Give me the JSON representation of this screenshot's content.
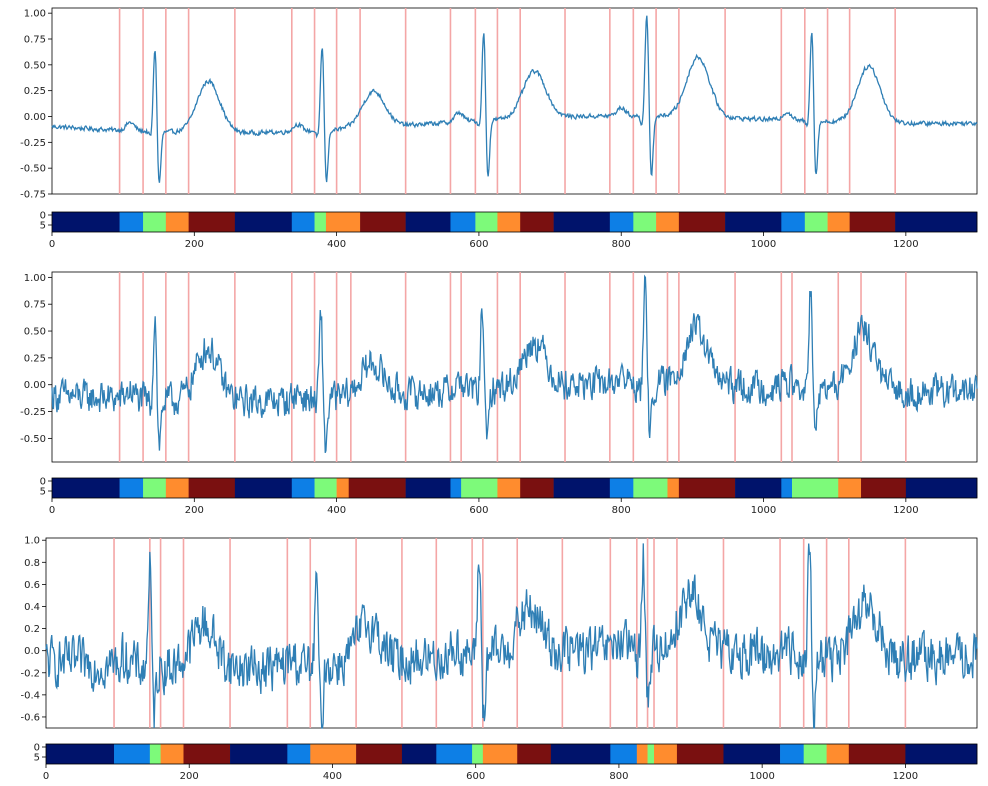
{
  "figure": {
    "description_none": ""
  },
  "colors": {
    "signal": "#2f7fb5",
    "boundary": "#f4a6a6",
    "seg_colormap": "jet",
    "seg_classes": {
      "0": "#00136b",
      "1": "#0d7fe6",
      "2": "#7dfa7a",
      "3": "#ff8c2e",
      "4": "#7a1010"
    }
  },
  "chart_data": [
    {
      "type": "line",
      "x_range": [
        0,
        1300
      ],
      "ylim": [
        -0.75,
        1.05
      ],
      "yticks": [
        -0.75,
        -0.5,
        -0.25,
        0.0,
        0.25,
        0.5,
        0.75,
        1.0
      ],
      "ytick_labels": [
        "-0.75",
        "-0.50",
        "-0.25",
        "0.00",
        "0.25",
        "0.50",
        "0.75",
        "1.00"
      ],
      "noise": 0.012,
      "beats": [
        {
          "p": 110,
          "q": 140,
          "r": 145,
          "s": 150,
          "t": 220,
          "p_amp": 0.08,
          "r_amp": 0.9,
          "s_amp": -0.6,
          "t_amp": 0.5
        },
        {
          "p": 345,
          "q": 375,
          "r": 380,
          "s": 385,
          "t": 452,
          "p_amp": 0.07,
          "r_amp": 0.9,
          "s_amp": -0.6,
          "t_amp": 0.35
        },
        {
          "p": 572,
          "q": 602,
          "r": 607,
          "s": 612,
          "t": 678,
          "p_amp": 0.09,
          "r_amp": 0.95,
          "s_amp": -0.65,
          "t_amp": 0.45
        },
        {
          "p": 800,
          "q": 830,
          "r": 836,
          "s": 842,
          "t": 908,
          "p_amp": 0.08,
          "r_amp": 1.0,
          "s_amp": -0.62,
          "t_amp": 0.58
        },
        {
          "p": 1033,
          "q": 1063,
          "r": 1068,
          "s": 1073,
          "t": 1148,
          "p_amp": 0.08,
          "r_amp": 0.98,
          "s_amp": -0.63,
          "t_amp": 0.55
        }
      ],
      "boundaries": [
        95,
        128,
        160,
        192,
        257,
        337,
        369,
        400,
        433,
        497,
        560,
        595,
        626,
        658,
        721,
        784,
        817,
        849,
        881,
        946,
        1025,
        1058,
        1090,
        1121,
        1185
      ],
      "segments": [
        [
          0,
          95,
          0
        ],
        [
          95,
          128,
          1
        ],
        [
          128,
          160,
          2
        ],
        [
          160,
          192,
          3
        ],
        [
          192,
          257,
          4
        ],
        [
          257,
          337,
          0
        ],
        [
          337,
          369,
          1
        ],
        [
          369,
          385,
          2
        ],
        [
          385,
          433,
          3
        ],
        [
          433,
          497,
          4
        ],
        [
          497,
          560,
          0
        ],
        [
          560,
          595,
          1
        ],
        [
          595,
          626,
          2
        ],
        [
          626,
          658,
          3
        ],
        [
          658,
          705,
          4
        ],
        [
          705,
          784,
          0
        ],
        [
          784,
          817,
          1
        ],
        [
          817,
          849,
          2
        ],
        [
          849,
          881,
          3
        ],
        [
          881,
          946,
          4
        ],
        [
          946,
          1025,
          0
        ],
        [
          1025,
          1058,
          1
        ],
        [
          1058,
          1090,
          2
        ],
        [
          1090,
          1121,
          3
        ],
        [
          1121,
          1185,
          4
        ],
        [
          1185,
          1300,
          0
        ]
      ],
      "seg_xticks": [
        0,
        200,
        400,
        600,
        800,
        1000,
        1200
      ],
      "seg_yticks": [
        "0",
        "5"
      ]
    },
    {
      "type": "line",
      "x_range": [
        0,
        1300
      ],
      "ylim": [
        -0.72,
        1.05
      ],
      "yticks": [
        -0.5,
        -0.25,
        0.0,
        0.25,
        0.5,
        0.75,
        1.0
      ],
      "ytick_labels": [
        "-0.50",
        "-0.25",
        "0.00",
        "0.25",
        "0.50",
        "0.75",
        "1.00"
      ],
      "noise": 0.085,
      "beats": [
        {
          "p": 110,
          "q": 140,
          "r": 145,
          "s": 150,
          "t": 218,
          "p_amp": 0.08,
          "r_amp": 0.88,
          "s_amp": -0.52,
          "t_amp": 0.5
        },
        {
          "p": 345,
          "q": 373,
          "r": 378,
          "s": 384,
          "t": 450,
          "p_amp": 0.07,
          "r_amp": 0.8,
          "s_amp": -0.5,
          "t_amp": 0.3
        },
        {
          "p": 572,
          "q": 600,
          "r": 605,
          "s": 611,
          "t": 678,
          "p_amp": 0.08,
          "r_amp": 0.82,
          "s_amp": -0.62,
          "t_amp": 0.42
        },
        {
          "p": 800,
          "q": 828,
          "r": 834,
          "s": 840,
          "t": 905,
          "p_amp": 0.08,
          "r_amp": 0.95,
          "s_amp": -0.52,
          "t_amp": 0.52
        },
        {
          "p": 1033,
          "q": 1061,
          "r": 1066,
          "s": 1072,
          "t": 1140,
          "p_amp": 0.08,
          "r_amp": 0.98,
          "s_amp": -0.52,
          "t_amp": 0.55
        }
      ],
      "boundaries": [
        95,
        128,
        160,
        192,
        257,
        337,
        369,
        400,
        420,
        497,
        560,
        575,
        626,
        658,
        721,
        784,
        817,
        865,
        881,
        960,
        1025,
        1040,
        1105,
        1137,
        1200
      ],
      "segments": [
        [
          0,
          95,
          0
        ],
        [
          95,
          128,
          1
        ],
        [
          128,
          160,
          2
        ],
        [
          160,
          192,
          3
        ],
        [
          192,
          257,
          4
        ],
        [
          257,
          337,
          0
        ],
        [
          337,
          369,
          1
        ],
        [
          369,
          400,
          2
        ],
        [
          400,
          417,
          3
        ],
        [
          417,
          497,
          4
        ],
        [
          497,
          560,
          0
        ],
        [
          560,
          575,
          1
        ],
        [
          575,
          626,
          2
        ],
        [
          626,
          658,
          3
        ],
        [
          658,
          705,
          4
        ],
        [
          705,
          784,
          0
        ],
        [
          784,
          817,
          1
        ],
        [
          817,
          865,
          2
        ],
        [
          865,
          881,
          3
        ],
        [
          881,
          960,
          4
        ],
        [
          960,
          1025,
          0
        ],
        [
          1025,
          1040,
          1
        ],
        [
          1040,
          1105,
          2
        ],
        [
          1105,
          1137,
          3
        ],
        [
          1137,
          1200,
          4
        ],
        [
          1200,
          1300,
          0
        ]
      ],
      "seg_xticks": [
        0,
        200,
        400,
        600,
        800,
        1000,
        1200
      ],
      "seg_yticks": [
        "0",
        "5"
      ]
    },
    {
      "type": "line",
      "x_range": [
        0,
        1300
      ],
      "ylim": [
        -0.7,
        1.02
      ],
      "yticks": [
        -0.6,
        -0.4,
        -0.2,
        0.0,
        0.2,
        0.4,
        0.6,
        0.8,
        1.0
      ],
      "ytick_labels": [
        "-0.6",
        "-0.4",
        "-0.2",
        "0.0",
        "0.2",
        "0.4",
        "0.6",
        "0.8",
        "1.0"
      ],
      "noise": 0.12,
      "beats": [
        {
          "p": 110,
          "q": 140,
          "r": 145,
          "s": 150,
          "t": 220,
          "p_amp": 0.08,
          "r_amp": 1.0,
          "s_amp": -0.55,
          "t_amp": 0.4
        },
        {
          "p": 345,
          "q": 373,
          "r": 378,
          "s": 384,
          "t": 450,
          "p_amp": 0.07,
          "r_amp": 0.8,
          "s_amp": -0.6,
          "t_amp": 0.35
        },
        {
          "p": 572,
          "q": 600,
          "r": 605,
          "s": 611,
          "t": 675,
          "p_amp": 0.08,
          "r_amp": 0.95,
          "s_amp": -0.62,
          "t_amp": 0.38
        },
        {
          "p": 800,
          "q": 828,
          "r": 834,
          "s": 840,
          "t": 900,
          "p_amp": 0.08,
          "r_amp": 0.9,
          "s_amp": -0.55,
          "t_amp": 0.5
        },
        {
          "p": 1033,
          "q": 1061,
          "r": 1066,
          "s": 1072,
          "t": 1145,
          "p_amp": 0.08,
          "r_amp": 1.0,
          "s_amp": -0.62,
          "t_amp": 0.45
        }
      ],
      "boundaries": [
        95,
        145,
        160,
        192,
        257,
        337,
        369,
        433,
        497,
        545,
        595,
        610,
        658,
        721,
        788,
        825,
        840,
        849,
        881,
        946,
        1025,
        1058,
        1090,
        1121,
        1200
      ],
      "segments": [
        [
          0,
          95,
          0
        ],
        [
          95,
          145,
          1
        ],
        [
          145,
          160,
          2
        ],
        [
          160,
          192,
          3
        ],
        [
          192,
          257,
          4
        ],
        [
          257,
          337,
          0
        ],
        [
          337,
          369,
          1
        ],
        [
          369,
          433,
          3
        ],
        [
          433,
          497,
          4
        ],
        [
          497,
          545,
          0
        ],
        [
          545,
          595,
          1
        ],
        [
          595,
          610,
          2
        ],
        [
          610,
          658,
          3
        ],
        [
          658,
          705,
          4
        ],
        [
          705,
          788,
          0
        ],
        [
          788,
          825,
          1
        ],
        [
          825,
          840,
          3
        ],
        [
          840,
          849,
          2
        ],
        [
          849,
          881,
          3
        ],
        [
          881,
          946,
          4
        ],
        [
          946,
          1025,
          0
        ],
        [
          1025,
          1058,
          1
        ],
        [
          1058,
          1090,
          2
        ],
        [
          1090,
          1121,
          3
        ],
        [
          1121,
          1200,
          4
        ],
        [
          1200,
          1300,
          0
        ]
      ],
      "seg_xticks": [
        0,
        200,
        400,
        600,
        800,
        1000,
        1200
      ],
      "seg_yticks": [
        "0",
        "5"
      ]
    }
  ]
}
